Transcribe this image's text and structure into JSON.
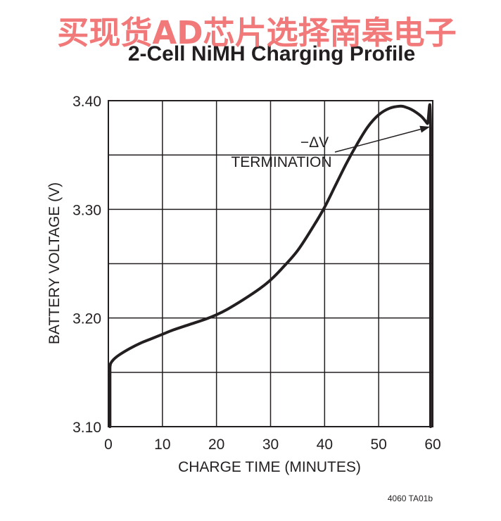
{
  "watermark": "买现货AD芯片选择南皋电子",
  "chart_data": {
    "type": "line",
    "title": "2-Cell NiMH Charging Profile",
    "xlabel": "CHARGE TIME (MINUTES)",
    "ylabel": "BATTERY VOLTAGE (V)",
    "xlim": [
      0,
      60
    ],
    "ylim": [
      3.1,
      3.4
    ],
    "x_ticks": [
      0,
      10,
      20,
      30,
      40,
      50,
      60
    ],
    "x_tick_labels": [
      "0",
      "10",
      "20",
      "30",
      "40",
      "50",
      "60"
    ],
    "y_ticks": [
      3.1,
      3.2,
      3.3,
      3.4
    ],
    "y_tick_labels": [
      "3.10",
      "3.20",
      "3.30",
      "3.40"
    ],
    "y_minor_ticks": [
      3.15,
      3.25,
      3.35
    ],
    "grid": true,
    "series": [
      {
        "x": [
          0.3,
          0.3,
          0.4,
          1,
          2,
          4,
          6,
          8,
          10,
          12,
          15,
          18,
          20,
          22,
          25,
          28,
          30,
          32,
          35,
          38,
          40,
          42,
          44,
          46,
          48,
          50,
          52,
          54,
          55,
          56,
          57,
          58,
          59,
          59.6,
          59.6
        ],
        "y": [
          3.1,
          3.155,
          3.158,
          3.162,
          3.166,
          3.172,
          3.177,
          3.181,
          3.185,
          3.189,
          3.194,
          3.199,
          3.203,
          3.208,
          3.217,
          3.227,
          3.235,
          3.245,
          3.262,
          3.285,
          3.302,
          3.322,
          3.342,
          3.36,
          3.376,
          3.387,
          3.393,
          3.395,
          3.394,
          3.392,
          3.389,
          3.385,
          3.379,
          3.375,
          3.1
        ]
      }
    ],
    "annotations": [
      {
        "lines": [
          "−ΔV",
          "TERMINATION"
        ],
        "arrow_to_x": 59.5,
        "arrow_to_y": 3.376
      }
    ]
  },
  "figure_id": "4060 TA01b"
}
